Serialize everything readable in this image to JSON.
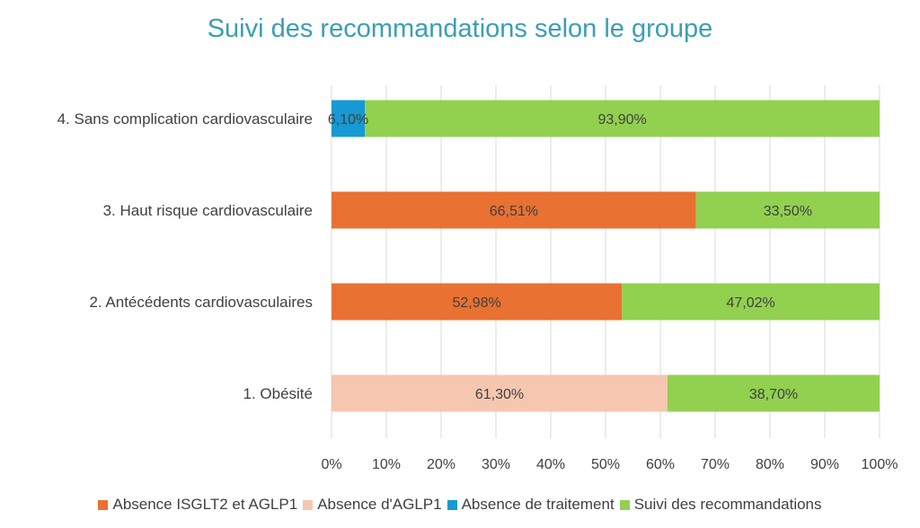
{
  "chart_data": {
    "type": "bar",
    "orientation": "horizontal",
    "stacked": "percent",
    "title": "Suivi des recommandations selon le groupe",
    "categories": [
      "1. Obésité",
      "2. Antécédents cardiovasculaires",
      "3. Haut risque cardiovasculaire",
      "4. Sans complication cardiovasculaire"
    ],
    "series": [
      {
        "name": "Absence ISGLT2 et AGLP1",
        "color": "#e97132",
        "values": [
          null,
          52.98,
          66.51,
          null
        ],
        "labels": [
          "",
          "52,98%",
          "66,51%",
          ""
        ]
      },
      {
        "name": "Absence d'AGLP1",
        "color": "#f5c7b0",
        "values": [
          61.3,
          null,
          null,
          null
        ],
        "labels": [
          "61,30%",
          "",
          "",
          ""
        ]
      },
      {
        "name": "Absence de traitement",
        "color": "#1799d3",
        "values": [
          null,
          null,
          null,
          6.1
        ],
        "labels": [
          "",
          "",
          "",
          "6,10%"
        ]
      },
      {
        "name": "Suivi des recommandations",
        "color": "#92d050",
        "values": [
          38.7,
          47.02,
          33.5,
          93.9
        ],
        "labels": [
          "38,70%",
          "47,02%",
          "33,50%",
          "93,90%"
        ]
      }
    ],
    "xlim": [
      0,
      100
    ],
    "xticks": [
      "0%",
      "10%",
      "20%",
      "30%",
      "40%",
      "50%",
      "60%",
      "70%",
      "80%",
      "90%",
      "100%"
    ],
    "grid": true,
    "legend_position": "bottom"
  }
}
